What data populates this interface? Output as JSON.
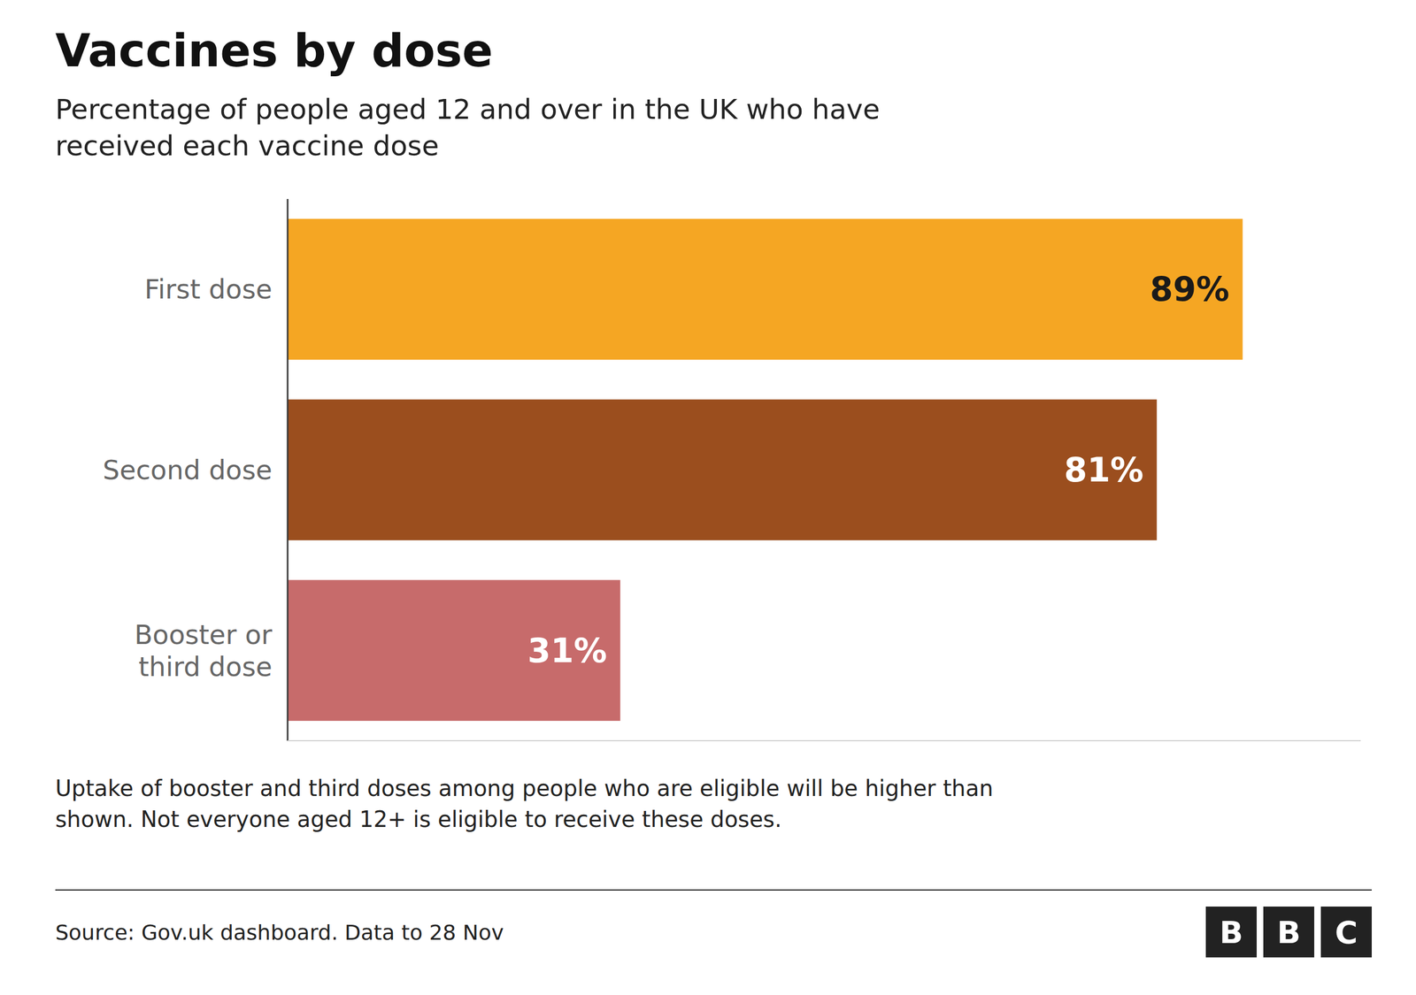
{
  "chart_data": {
    "type": "bar",
    "orientation": "horizontal",
    "title": "Vaccines by dose",
    "subtitle": "Percentage of people aged 12 and over in the UK who have\nreceived each vaccine dose",
    "categories": [
      "First dose",
      "Second dose",
      "Booster or\nthird dose"
    ],
    "values": [
      89,
      81,
      31
    ],
    "value_labels": [
      "89%",
      "81%",
      "31%"
    ],
    "colors": [
      "#F5A623",
      "#9B4E1E",
      "#C76B6B"
    ],
    "data_labels": true,
    "xlim": [
      0,
      100
    ],
    "tick_labels": "y",
    "grid": false,
    "footnote": "Uptake of booster and third doses among people who are eligible will be higher than\nshown. Not everyone aged 12+ is eligible to receive these doses.",
    "source": "Source: Gov.uk dashboard. Data to 28 Nov",
    "logo": "BBC"
  }
}
